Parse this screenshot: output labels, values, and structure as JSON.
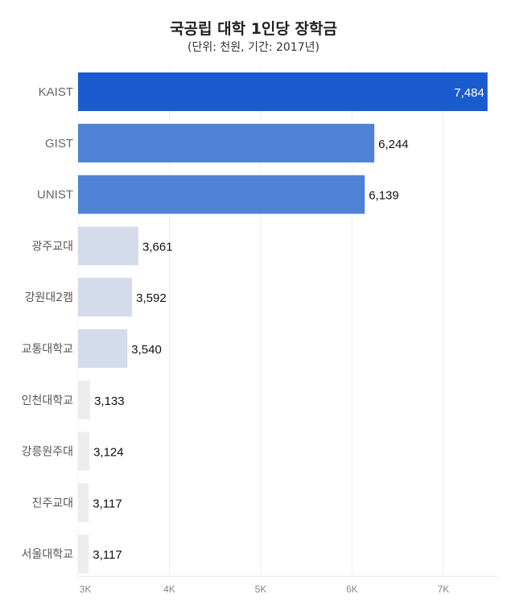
{
  "title": "국공립 대학 1인당 장학금",
  "subtitle": "(단위: 천원, 기간: 2017년)",
  "chart_data": {
    "type": "bar",
    "orientation": "horizontal",
    "title": "국공립 대학 1인당 장학금",
    "subtitle": "(단위: 천원, 기간: 2017년)",
    "categories": [
      "KAIST",
      "GIST",
      "UNIST",
      "광주교대",
      "강원대2캠",
      "교통대학교",
      "인천대학교",
      "강릉원주대",
      "진주교대",
      "서울대학교"
    ],
    "values": [
      7484,
      6244,
      6139,
      3661,
      3592,
      3540,
      3133,
      3124,
      3117,
      3117
    ],
    "value_labels": [
      "7,484",
      "6,244",
      "6,139",
      "3,661",
      "3,592",
      "3,540",
      "3,133",
      "3,124",
      "3,117",
      "3,117"
    ],
    "bar_colors": [
      "#1a5ccf",
      "#4f82d6",
      "#4f82d6",
      "#d4dcec",
      "#d4dcec",
      "#d4dcec",
      "#ededed",
      "#ededed",
      "#ededed",
      "#ededed"
    ],
    "xlim": [
      3000,
      7600
    ],
    "xticks": [
      3000,
      4000,
      5000,
      6000,
      7000
    ],
    "xtick_labels": [
      "3K",
      "4K",
      "5K",
      "6K",
      "7K"
    ],
    "xlabel": "",
    "ylabel": "",
    "grid": true
  }
}
